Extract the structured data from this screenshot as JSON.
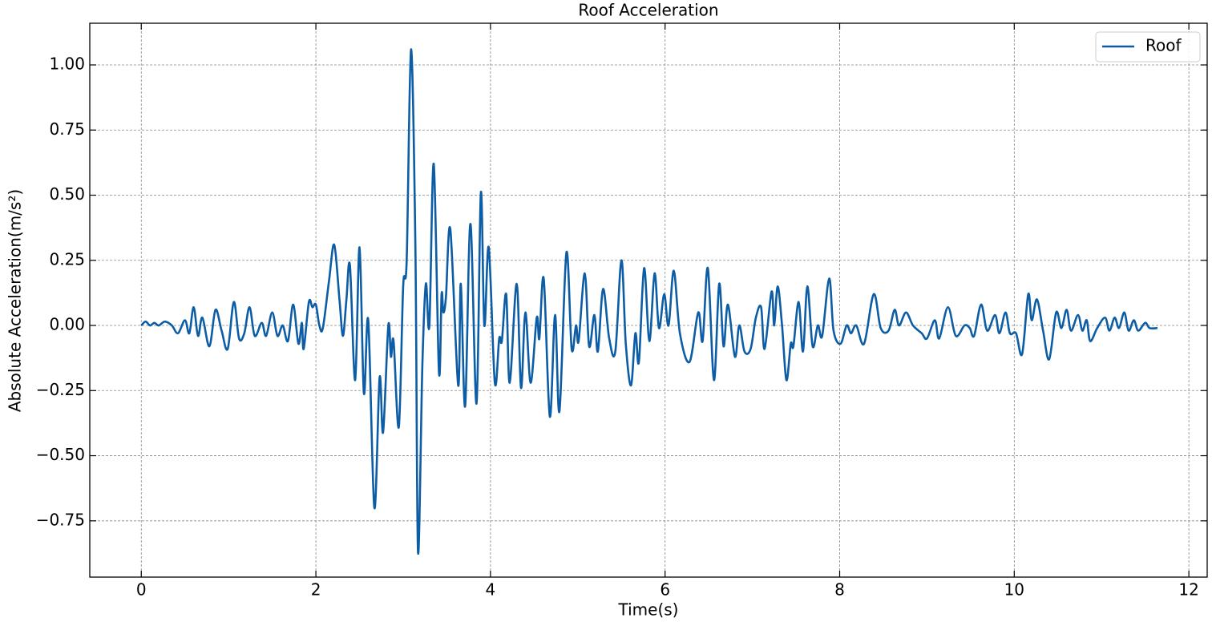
{
  "chart_data": {
    "type": "line",
    "title": "Roof Acceleration",
    "xlabel": "Time(s)",
    "ylabel": "Absolute Acceleration(m/s²)",
    "x": [
      0,
      0.05,
      0.1,
      0.15,
      0.2,
      0.27,
      0.35,
      0.42,
      0.5,
      0.55,
      0.6,
      0.65,
      0.7,
      0.78,
      0.85,
      0.92,
      0.99,
      1.06,
      1.12,
      1.18,
      1.24,
      1.3,
      1.38,
      1.43,
      1.5,
      1.56,
      1.62,
      1.68,
      1.74,
      1.8,
      1.84,
      1.86,
      1.92,
      1.96,
      2.0,
      2.04,
      2.08,
      2.15,
      2.21,
      2.27,
      2.31,
      2.35,
      2.39,
      2.45,
      2.5,
      2.55,
      2.6,
      2.67,
      2.73,
      2.77,
      2.83,
      2.86,
      2.89,
      2.95,
      3.0,
      3.04,
      3.09,
      3.14,
      3.17,
      3.22,
      3.26,
      3.3,
      3.35,
      3.41,
      3.44,
      3.46,
      3.49,
      3.54,
      3.63,
      3.66,
      3.71,
      3.77,
      3.84,
      3.89,
      3.93,
      3.98,
      4.05,
      4.1,
      4.13,
      4.18,
      4.22,
      4.3,
      4.35,
      4.4,
      4.46,
      4.53,
      4.56,
      4.61,
      4.68,
      4.74,
      4.79,
      4.87,
      4.93,
      4.98,
      5.01,
      5.08,
      5.13,
      5.19,
      5.23,
      5.29,
      5.36,
      5.43,
      5.5,
      5.55,
      5.61,
      5.66,
      5.7,
      5.76,
      5.82,
      5.88,
      5.93,
      5.99,
      6.04,
      6.1,
      6.17,
      6.28,
      6.38,
      6.43,
      6.49,
      6.56,
      6.62,
      6.67,
      6.72,
      6.8,
      6.85,
      6.91,
      6.98,
      7.04,
      7.1,
      7.14,
      7.22,
      7.25,
      7.29,
      7.34,
      7.39,
      7.44,
      7.47,
      7.53,
      7.58,
      7.63,
      7.69,
      7.75,
      7.8,
      7.88,
      7.93,
      8.01,
      8.08,
      8.13,
      8.19,
      8.28,
      8.39,
      8.47,
      8.56,
      8.63,
      8.68,
      8.76,
      8.84,
      8.94,
      9.0,
      9.09,
      9.14,
      9.24,
      9.33,
      9.43,
      9.49,
      9.54,
      9.62,
      9.69,
      9.78,
      9.83,
      9.9,
      9.95,
      10.02,
      10.09,
      10.16,
      10.2,
      10.26,
      10.33,
      10.4,
      10.48,
      10.54,
      10.6,
      10.65,
      10.73,
      10.78,
      10.83,
      10.87,
      10.95,
      11.04,
      11.09,
      11.15,
      11.2,
      11.26,
      11.31,
      11.37,
      11.42,
      11.5,
      11.55,
      11.64
    ],
    "series": [
      {
        "name": "Roof",
        "color": "#0c5da5",
        "values": [
          0,
          0.015,
          0.0,
          0.01,
          0.0,
          0.015,
          0.0,
          -0.03,
          0.02,
          -0.03,
          0.07,
          -0.04,
          0.03,
          -0.08,
          0.06,
          -0.02,
          -0.09,
          0.09,
          -0.05,
          -0.03,
          0.07,
          -0.04,
          0.01,
          -0.04,
          0.05,
          -0.04,
          0.0,
          -0.06,
          0.08,
          -0.07,
          0.01,
          -0.09,
          0.09,
          0.07,
          0.08,
          0.0,
          -0.01,
          0.17,
          0.31,
          0.1,
          -0.04,
          0.1,
          0.23,
          -0.21,
          0.3,
          -0.26,
          0.02,
          -0.7,
          -0.2,
          -0.41,
          0.0,
          -0.12,
          -0.06,
          -0.39,
          0.15,
          0.25,
          1.06,
          0.3,
          -0.87,
          -0.15,
          0.16,
          0.0,
          0.62,
          -0.18,
          0.12,
          0.05,
          0.11,
          0.37,
          -0.23,
          0.16,
          -0.31,
          0.39,
          -0.3,
          0.51,
          0.0,
          0.3,
          -0.22,
          -0.05,
          -0.06,
          0.12,
          -0.22,
          0.16,
          -0.24,
          0.05,
          -0.22,
          0.03,
          -0.05,
          0.18,
          -0.35,
          0.04,
          -0.33,
          0.28,
          -0.09,
          0.0,
          -0.06,
          0.2,
          -0.08,
          0.04,
          -0.1,
          0.14,
          -0.05,
          -0.1,
          0.25,
          -0.07,
          -0.23,
          -0.03,
          -0.14,
          0.22,
          -0.06,
          0.2,
          -0.01,
          0.12,
          0.0,
          0.21,
          -0.03,
          -0.14,
          0.05,
          -0.06,
          0.22,
          -0.21,
          0.16,
          -0.08,
          0.08,
          -0.12,
          0.0,
          -0.1,
          -0.09,
          0.03,
          0.07,
          -0.09,
          0.13,
          0.0,
          0.15,
          0.0,
          -0.21,
          -0.07,
          -0.08,
          0.09,
          -0.1,
          0.15,
          -0.08,
          0.0,
          -0.04,
          0.18,
          -0.02,
          -0.07,
          0.0,
          -0.03,
          0.0,
          -0.07,
          0.12,
          -0.01,
          -0.02,
          0.06,
          0.0,
          0.05,
          0.0,
          -0.03,
          -0.05,
          0.02,
          -0.05,
          0.07,
          -0.04,
          0.0,
          -0.01,
          -0.04,
          0.08,
          -0.02,
          0.04,
          -0.03,
          0.05,
          -0.03,
          -0.03,
          -0.11,
          0.12,
          0.02,
          0.1,
          -0.02,
          -0.13,
          0.05,
          -0.01,
          0.06,
          -0.02,
          0.04,
          -0.02,
          0.02,
          -0.06,
          -0.01,
          0.03,
          -0.02,
          0.03,
          -0.01,
          0.05,
          -0.02,
          0.02,
          -0.02,
          0.01,
          -0.01,
          -0.01
        ]
      }
    ],
    "xlim": [
      -0.59,
      12.21
    ],
    "xticks": [
      0,
      2,
      4,
      6,
      8,
      10,
      12
    ],
    "ylim": [
      -0.966,
      1.16
    ],
    "yticks": [
      {
        "value": -0.75,
        "label": "−0.75"
      },
      {
        "value": -0.5,
        "label": "−0.50"
      },
      {
        "value": -0.25,
        "label": "−0.25"
      },
      {
        "value": 0,
        "label": "0.00"
      },
      {
        "value": 0.25,
        "label": "0.25"
      },
      {
        "value": 0.5,
        "label": "0.50"
      },
      {
        "value": 0.75,
        "label": "0.75"
      },
      {
        "value": 1,
        "label": "1.00"
      }
    ],
    "grid": true,
    "legend": "upper right"
  }
}
